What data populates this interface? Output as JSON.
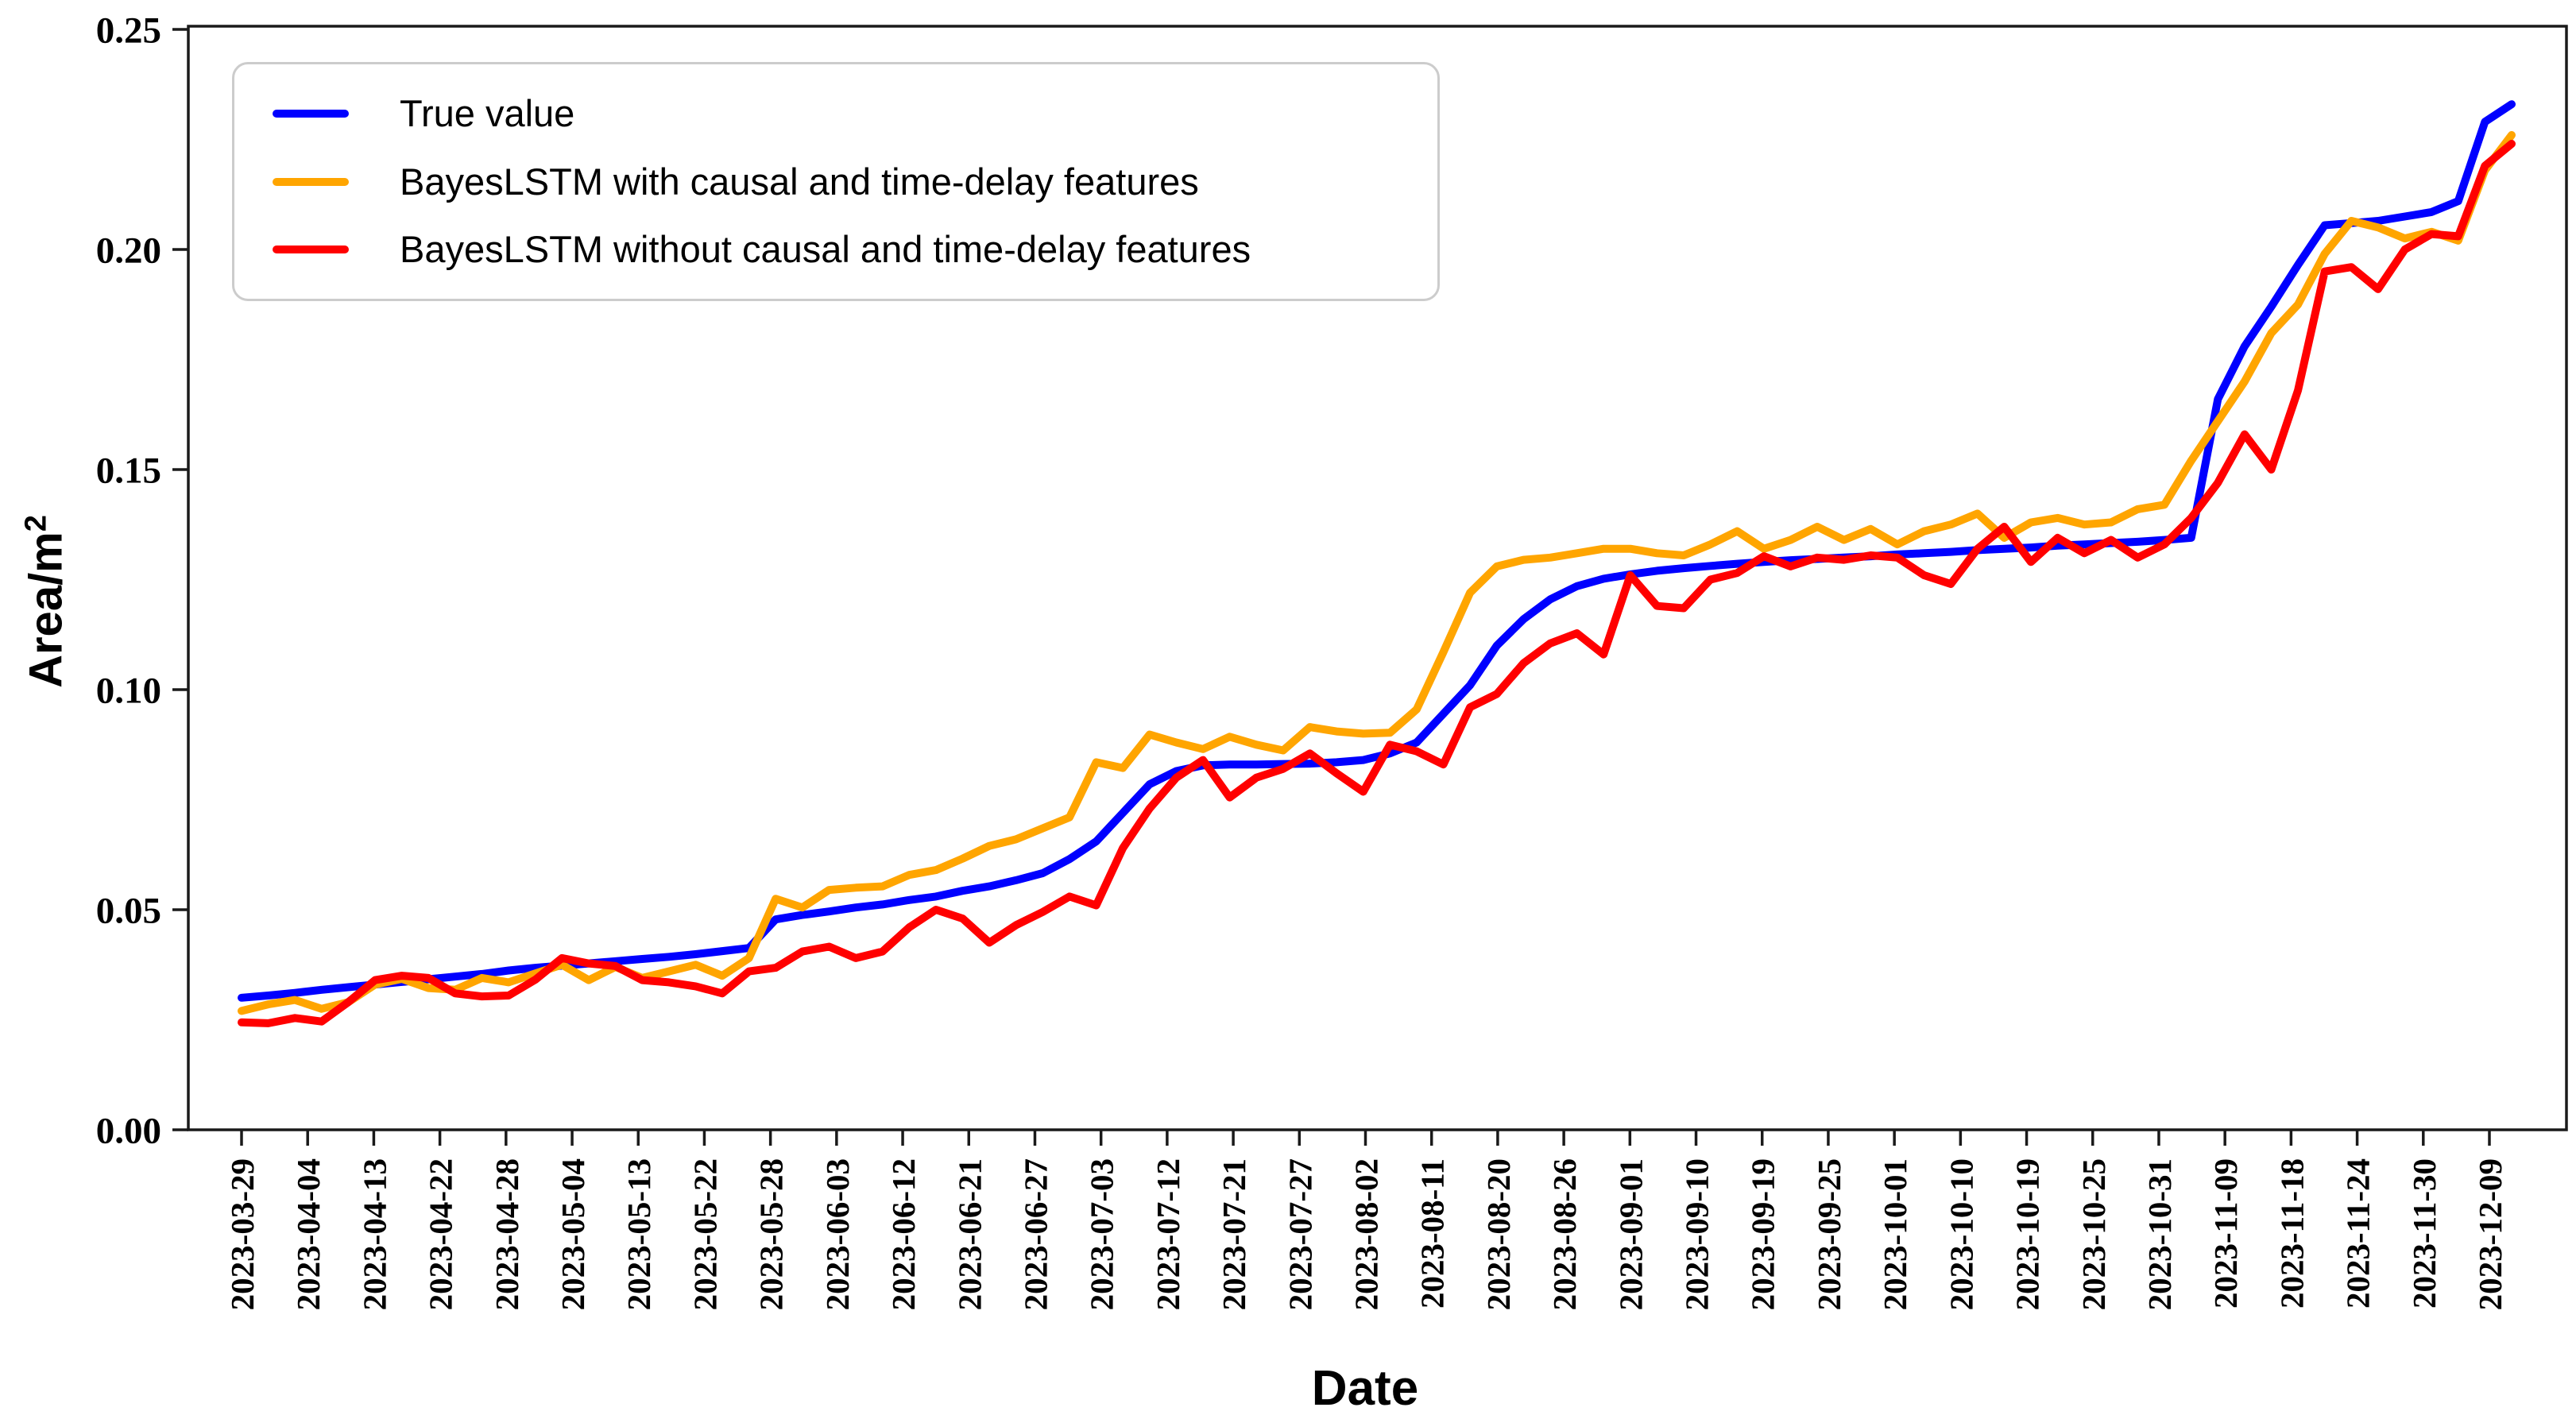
{
  "figure": {
    "background": "#ffffff"
  },
  "chart_data": {
    "type": "line",
    "title": "",
    "xlabel": "Date",
    "ylabel": {
      "text": "Area/m",
      "superscript": "2"
    },
    "ylim": [
      0.0,
      0.25
    ],
    "grid": false,
    "legend_position": "upper left",
    "yticks": [
      0.0,
      0.05,
      0.1,
      0.15,
      0.2,
      0.25
    ],
    "ytick_labels": [
      "0.00",
      "0.05",
      "0.10",
      "0.15",
      "0.20",
      "0.25"
    ],
    "xtick_labels": [
      "2023-03-29",
      "2023-04-04",
      "2023-04-13",
      "2023-04-22",
      "2023-04-28",
      "2023-05-04",
      "2023-05-13",
      "2023-05-22",
      "2023-05-28",
      "2023-06-03",
      "2023-06-12",
      "2023-06-21",
      "2023-06-27",
      "2023-07-03",
      "2023-07-12",
      "2023-07-21",
      "2023-07-27",
      "2023-08-02",
      "2023-08-11",
      "2023-08-20",
      "2023-08-26",
      "2023-09-01",
      "2023-09-10",
      "2023-09-19",
      "2023-09-25",
      "2023-10-01",
      "2023-10-10",
      "2023-10-19",
      "2023-10-25",
      "2023-10-31",
      "2023-11-09",
      "2023-11-18",
      "2023-11-24",
      "2023-11-30",
      "2023-12-09"
    ],
    "series": [
      {
        "name": "True value",
        "color": "#0000ff",
        "values": [
          0.03,
          0.0305,
          0.0311,
          0.0318,
          0.0324,
          0.033,
          0.0336,
          0.0342,
          0.0348,
          0.0354,
          0.0362,
          0.0368,
          0.0373,
          0.0378,
          0.0383,
          0.0388,
          0.0393,
          0.0399,
          0.0406,
          0.0413,
          0.0478,
          0.0488,
          0.0496,
          0.0505,
          0.0512,
          0.0522,
          0.053,
          0.0543,
          0.0553,
          0.0567,
          0.0583,
          0.0615,
          0.0655,
          0.072,
          0.0785,
          0.0815,
          0.0828,
          0.083,
          0.083,
          0.0831,
          0.0832,
          0.0835,
          0.084,
          0.0855,
          0.088,
          0.0945,
          0.101,
          0.11,
          0.116,
          0.1205,
          0.1235,
          0.1252,
          0.1262,
          0.127,
          0.1276,
          0.1281,
          0.1286,
          0.129,
          0.1294,
          0.1297,
          0.13,
          0.1303,
          0.1307,
          0.131,
          0.1313,
          0.1317,
          0.132,
          0.1323,
          0.1327,
          0.133,
          0.1333,
          0.1336,
          0.134,
          0.1345,
          0.166,
          0.178,
          0.187,
          0.1965,
          0.2055,
          0.206,
          0.2065,
          0.2075,
          0.2085,
          0.211,
          0.229,
          0.233
        ]
      },
      {
        "name": "BayesLSTM with causal and time-delay features",
        "color": "#ffa500",
        "values": [
          0.027,
          0.0285,
          0.0295,
          0.0275,
          0.029,
          0.033,
          0.0343,
          0.0322,
          0.0318,
          0.0345,
          0.0335,
          0.0355,
          0.0375,
          0.034,
          0.037,
          0.0345,
          0.036,
          0.0375,
          0.035,
          0.039,
          0.0525,
          0.0505,
          0.0545,
          0.055,
          0.0553,
          0.0579,
          0.059,
          0.0616,
          0.0645,
          0.066,
          0.0685,
          0.071,
          0.0835,
          0.0822,
          0.0898,
          0.088,
          0.0865,
          0.0893,
          0.0875,
          0.0862,
          0.0915,
          0.0905,
          0.09,
          0.0902,
          0.0955,
          0.1085,
          0.122,
          0.128,
          0.1295,
          0.13,
          0.131,
          0.132,
          0.132,
          0.131,
          0.1305,
          0.133,
          0.136,
          0.132,
          0.134,
          0.137,
          0.134,
          0.1365,
          0.133,
          0.136,
          0.1375,
          0.14,
          0.1345,
          0.138,
          0.139,
          0.1375,
          0.138,
          0.141,
          0.142,
          0.152,
          0.161,
          0.17,
          0.181,
          0.1875,
          0.199,
          0.2065,
          0.205,
          0.2025,
          0.204,
          0.202,
          0.218,
          0.226
        ]
      },
      {
        "name": "BayesLSTM without causal and time-delay features",
        "color": "#ff0000",
        "values": [
          0.0244,
          0.0242,
          0.0254,
          0.0246,
          0.029,
          0.034,
          0.035,
          0.0345,
          0.031,
          0.0303,
          0.0305,
          0.0341,
          0.039,
          0.0378,
          0.0372,
          0.034,
          0.0335,
          0.0326,
          0.031,
          0.036,
          0.0368,
          0.0405,
          0.0416,
          0.039,
          0.0405,
          0.046,
          0.05,
          0.048,
          0.0425,
          0.0465,
          0.0495,
          0.053,
          0.051,
          0.064,
          0.073,
          0.08,
          0.084,
          0.0755,
          0.08,
          0.082,
          0.0855,
          0.081,
          0.0768,
          0.0875,
          0.086,
          0.083,
          0.096,
          0.099,
          0.106,
          0.1105,
          0.1128,
          0.108,
          0.126,
          0.119,
          0.1185,
          0.125,
          0.1265,
          0.1303,
          0.128,
          0.13,
          0.1295,
          0.1305,
          0.13,
          0.126,
          0.124,
          0.132,
          0.137,
          0.129,
          0.1345,
          0.131,
          0.134,
          0.13,
          0.133,
          0.139,
          0.147,
          0.158,
          0.15,
          0.168,
          0.195,
          0.196,
          0.191,
          0.2,
          0.2035,
          0.203,
          0.219,
          0.224
        ]
      }
    ]
  }
}
